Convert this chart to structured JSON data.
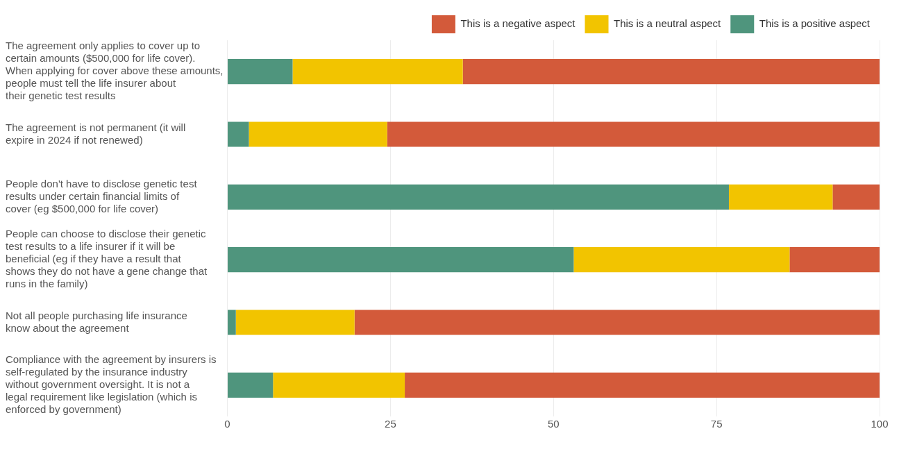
{
  "chart_data": {
    "type": "bar",
    "orientation": "horizontal",
    "stacked": true,
    "categories": [
      "The agreement only applies to cover up to certain amounts ($500,000 for life cover). When applying for cover above these amounts, people must tell the life insurer about their genetic test results",
      "The agreement is not permanent (it will expire in 2024 if not renewed)",
      "People don't have to disclose genetic test results under certain financial limits of cover (eg $500,000 for life cover)",
      "People can choose to disclose their genetic test results to a life insurer if it will be beneficial (eg if they have a result that shows they do not have a gene change that runs in the family)",
      "Not all people purchasing life insurance know about the agreement",
      "Compliance with the agreement by insurers is self-regulated by the insurance industry without government oversight. It is not a legal requirement like legislation (which is enforced by government)"
    ],
    "series": [
      {
        "name": "This is a positive aspect",
        "color": "#4f957d",
        "values": [
          10,
          3.3,
          76.9,
          53.1,
          1.3,
          7
        ]
      },
      {
        "name": "This is a neutral aspect",
        "color": "#f2c400",
        "values": [
          26.1,
          21.2,
          15.9,
          33.1,
          18.2,
          20.2
        ]
      },
      {
        "name": "This is a negative aspect",
        "color": "#d35a3a",
        "values": [
          63.9,
          75.5,
          7.2,
          13.8,
          80.5,
          72.8
        ]
      }
    ],
    "xlim": [
      0,
      100
    ],
    "xticks": [
      0,
      25,
      50,
      75,
      100
    ],
    "grid": "x",
    "legend": "top right"
  }
}
